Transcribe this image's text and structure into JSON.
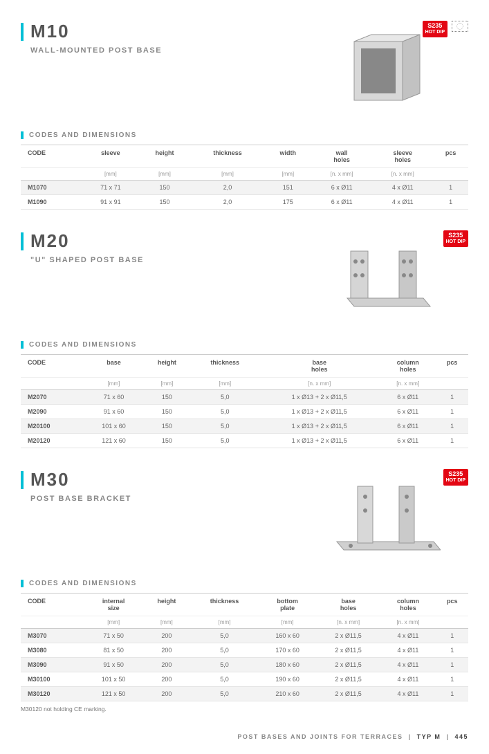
{
  "global": {
    "badge_s235": "S235",
    "badge_hotdip": "HOT DIP",
    "codes_dims": "CODES AND DIMENSIONS",
    "footer_left": "POST BASES AND JOINTS FOR TERRACES",
    "footer_mid": "TYP M",
    "footer_page": "445"
  },
  "colors": {
    "accent": "#00bfd6",
    "badge": "#e30613",
    "row_alt": "#f3f3f3",
    "text_muted": "#888"
  },
  "products": [
    {
      "code": "M10",
      "subtitle": "WALL-MOUNTED POST BASE",
      "show_eu": true,
      "image": "box",
      "columns": [
        "CODE",
        "sleeve",
        "height",
        "thickness",
        "width",
        "wall holes",
        "sleeve holes",
        "pcs"
      ],
      "units": [
        "",
        "[mm]",
        "[mm]",
        "[mm]",
        "[mm]",
        "[n. x mm]",
        "[n. x mm]",
        ""
      ],
      "rows": [
        [
          "M1070",
          "71 x 71",
          "150",
          "2,0",
          "151",
          "6 x Ø11",
          "4 x Ø11",
          "1"
        ],
        [
          "M1090",
          "91 x 91",
          "150",
          "2,0",
          "175",
          "6 x Ø11",
          "4 x Ø11",
          "1"
        ]
      ]
    },
    {
      "code": "M20",
      "subtitle": "\"U\" SHAPED POST BASE",
      "show_eu": false,
      "image": "ubase",
      "columns": [
        "CODE",
        "base",
        "height",
        "thickness",
        "base holes",
        "column holes",
        "pcs"
      ],
      "units": [
        "",
        "[mm]",
        "[mm]",
        "[mm]",
        "[n. x mm]",
        "[n. x mm]",
        ""
      ],
      "rows": [
        [
          "M2070",
          "71 x 60",
          "150",
          "5,0",
          "1 x Ø13 + 2 x Ø11,5",
          "6 x Ø11",
          "1"
        ],
        [
          "M2090",
          "91 x 60",
          "150",
          "5,0",
          "1 x Ø13 + 2 x Ø11,5",
          "6 x Ø11",
          "1"
        ],
        [
          "M20100",
          "101 x 60",
          "150",
          "5,0",
          "1 x Ø13 + 2 x Ø11,5",
          "6 x Ø11",
          "1"
        ],
        [
          "M20120",
          "121 x 60",
          "150",
          "5,0",
          "1 x Ø13 + 2 x Ø11,5",
          "6 x Ø11",
          "1"
        ]
      ]
    },
    {
      "code": "M30",
      "subtitle": "POST BASE BRACKET",
      "show_eu": false,
      "image": "bracket",
      "columns": [
        "CODE",
        "internal size",
        "height",
        "thickness",
        "bottom plate",
        "base holes",
        "column holes",
        "pcs"
      ],
      "units": [
        "",
        "[mm]",
        "[mm]",
        "[mm]",
        "[mm]",
        "[n. x mm]",
        "[n. x mm]",
        ""
      ],
      "rows": [
        [
          "M3070",
          "71 x 50",
          "200",
          "5,0",
          "160 x 60",
          "2 x Ø11,5",
          "4 x Ø11",
          "1"
        ],
        [
          "M3080",
          "81 x 50",
          "200",
          "5,0",
          "170 x 60",
          "2 x Ø11,5",
          "4 x Ø11",
          "1"
        ],
        [
          "M3090",
          "91 x 50",
          "200",
          "5,0",
          "180 x 60",
          "2 x Ø11,5",
          "4 x Ø11",
          "1"
        ],
        [
          "M30100",
          "101 x 50",
          "200",
          "5,0",
          "190 x 60",
          "2 x Ø11,5",
          "4 x Ø11",
          "1"
        ],
        [
          "M30120",
          "121 x 50",
          "200",
          "5,0",
          "210 x 60",
          "2 x Ø11,5",
          "4 x Ø11",
          "1"
        ]
      ],
      "note": "M30120 not holding CE marking."
    }
  ]
}
